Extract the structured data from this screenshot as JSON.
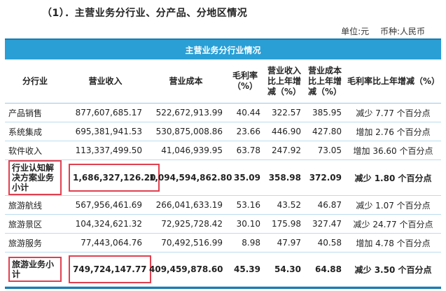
{
  "heading": "（1）．主营业务分行业、分产品、分地区情况",
  "unit_label": "单位:元",
  "currency_label": "币种:人民币",
  "banner_title": "主营业务分行业情况",
  "table": {
    "headers": [
      "分行业",
      "营业收入",
      "营业成本",
      "毛利率（%）",
      "营业收入比上年增减（%）",
      "营业成本比上年增减（%）",
      "毛利率比上年增减（%）"
    ],
    "rows": [
      [
        "产品销售",
        "877,607,685.17",
        "522,672,913.99",
        "40.44",
        "322.57",
        "385.95",
        "减少 7.77 个百分点"
      ],
      [
        "系统集成",
        "695,381,941.53",
        "530,875,008.86",
        "23.66",
        "446.90",
        "427.80",
        "增加 2.76 个百分点"
      ],
      [
        "软件收入",
        "113,337,499.50",
        "41,046,939.95",
        "63.78",
        "247.92",
        "73.05",
        "增加 36.60 个百分点"
      ],
      [
        "行业认知解决方案业务小计",
        "1,686,327,126.20",
        "1,094,594,862.80",
        "35.09",
        "358.98",
        "372.09",
        "减少 1.80 个百分点"
      ],
      [
        "旅游航线",
        "567,956,461.69",
        "266,041,633.19",
        "53.16",
        "43.52",
        "46.87",
        "减少 1.07 个百分点"
      ],
      [
        "旅游景区",
        "104,324,621.32",
        "72,925,728.42",
        "30.10",
        "175.98",
        "327.47",
        "减少 24.77 个百分点"
      ],
      [
        "旅游服务",
        "77,443,064.76",
        "70,492,516.99",
        "8.98",
        "47.97",
        "40.58",
        "增加 4.78 个百分点"
      ],
      [
        "旅游业务小计",
        "749,724,147.77",
        "409,459,878.60",
        "45.39",
        "54.30",
        "64.88",
        "减少 3.50 个百分点"
      ]
    ]
  },
  "colors": {
    "banner": "#2a9fd6",
    "highlight_box": "#e04050"
  }
}
